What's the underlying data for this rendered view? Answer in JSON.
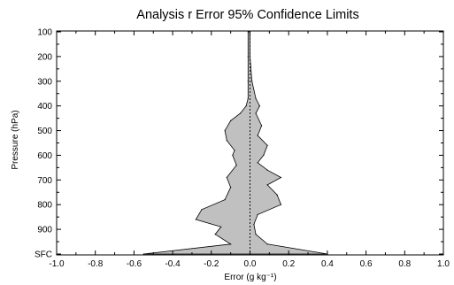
{
  "chart_data": {
    "type": "area",
    "title": "Analysis r Error 95% Confidence Limits",
    "xlabel": "Error (g kg⁻¹)",
    "ylabel": "Pressure (hPa)",
    "xlim": [
      -1.0,
      1.0
    ],
    "ylim_labels_top_to_bottom": [
      "100",
      "200",
      "300",
      "400",
      "500",
      "600",
      "700",
      "800",
      "900",
      "SFC"
    ],
    "x_ticks": [
      "-1.0",
      "-0.8",
      "-0.6",
      "-0.4",
      "-0.2",
      "0.0",
      "0.2",
      "0.4",
      "0.6",
      "0.8",
      "1.0"
    ],
    "y_ticks": [
      {
        "label": "100",
        "value": 100
      },
      {
        "label": "200",
        "value": 200
      },
      {
        "label": "300",
        "value": 300
      },
      {
        "label": "400",
        "value": 400
      },
      {
        "label": "500",
        "value": 500
      },
      {
        "label": "600",
        "value": 600
      },
      {
        "label": "700",
        "value": 700
      },
      {
        "label": "800",
        "value": 800
      },
      {
        "label": "900",
        "value": 900
      },
      {
        "label": "SFC",
        "value": 1000
      }
    ],
    "fill_color": "#c0c0c0",
    "reference_line": {
      "x": 0.0,
      "style": "dashed"
    },
    "grid": false,
    "series": [
      {
        "role": "upper",
        "points": [
          [
            100,
            0.0
          ],
          [
            200,
            0.0
          ],
          [
            300,
            0.01
          ],
          [
            370,
            0.03
          ],
          [
            400,
            0.05
          ],
          [
            430,
            0.03
          ],
          [
            480,
            0.06
          ],
          [
            520,
            0.04
          ],
          [
            560,
            0.09
          ],
          [
            600,
            0.07
          ],
          [
            630,
            0.04
          ],
          [
            660,
            0.09
          ],
          [
            690,
            0.16
          ],
          [
            720,
            0.09
          ],
          [
            760,
            0.14
          ],
          [
            800,
            0.16
          ],
          [
            840,
            0.04
          ],
          [
            880,
            0.02
          ],
          [
            920,
            0.03
          ],
          [
            960,
            0.09
          ],
          [
            1000,
            0.4
          ]
        ]
      },
      {
        "role": "lower",
        "points": [
          [
            100,
            -0.01
          ],
          [
            200,
            -0.01
          ],
          [
            300,
            -0.01
          ],
          [
            370,
            -0.01
          ],
          [
            400,
            -0.02
          ],
          [
            430,
            -0.05
          ],
          [
            460,
            -0.1
          ],
          [
            500,
            -0.13
          ],
          [
            540,
            -0.12
          ],
          [
            580,
            -0.08
          ],
          [
            600,
            -0.09
          ],
          [
            640,
            -0.07
          ],
          [
            690,
            -0.12
          ],
          [
            730,
            -0.1
          ],
          [
            780,
            -0.13
          ],
          [
            820,
            -0.25
          ],
          [
            860,
            -0.28
          ],
          [
            890,
            -0.15
          ],
          [
            920,
            -0.18
          ],
          [
            960,
            -0.1
          ],
          [
            1000,
            -0.55
          ]
        ]
      }
    ]
  }
}
